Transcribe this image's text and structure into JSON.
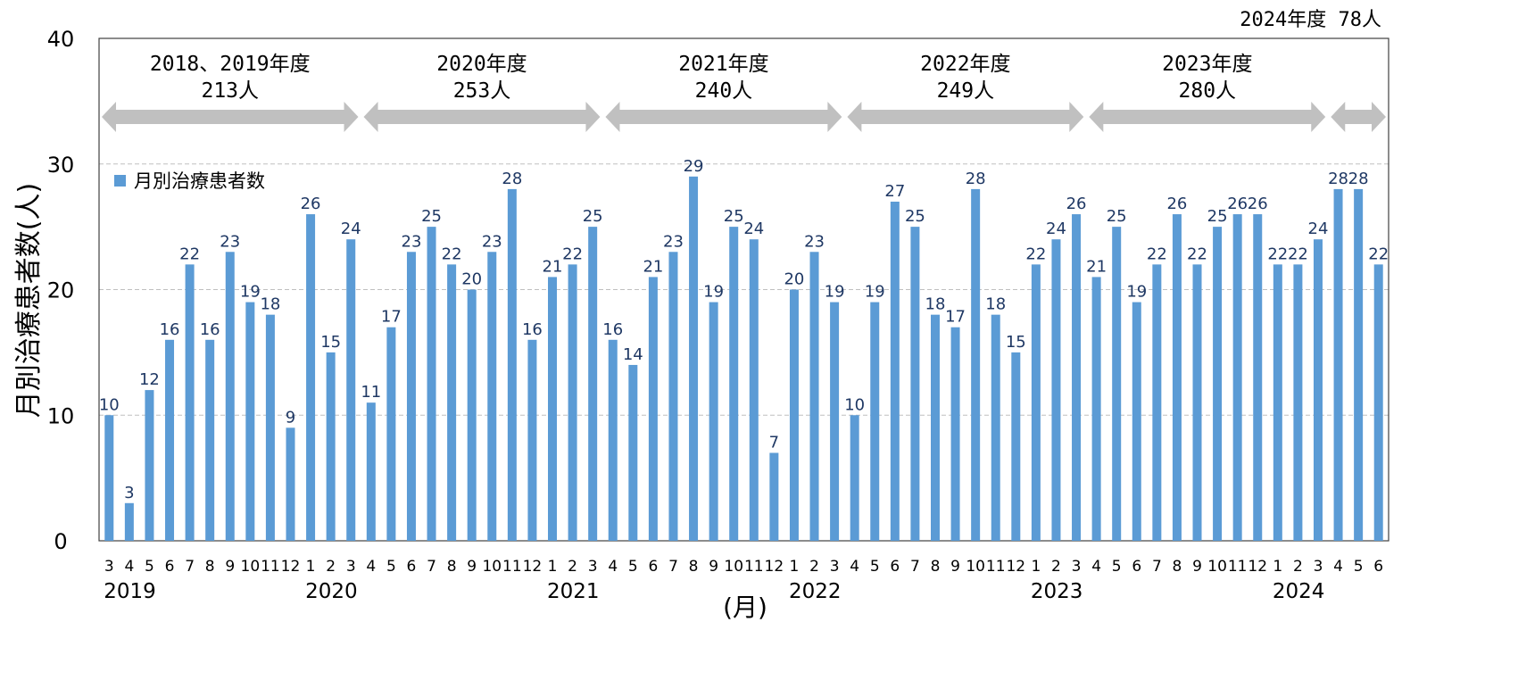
{
  "chart_data": {
    "type": "bar",
    "ylabel": "月別治療患者数(人)",
    "xlabel": "(月)",
    "ylim": [
      0,
      40
    ],
    "yticks": [
      "0",
      "10",
      "20",
      "30",
      "40"
    ],
    "grid": true,
    "legend_position": "top-left",
    "colors": {
      "bar": "#5B9BD5",
      "value_label": "#1F3864",
      "arrow": "#C0C0C0",
      "grid": "#BFBFBF"
    },
    "series": [
      {
        "name": "月別治療患者数",
        "values": [
          10,
          3,
          12,
          16,
          22,
          16,
          23,
          19,
          18,
          9,
          26,
          15,
          24,
          11,
          17,
          23,
          25,
          22,
          20,
          23,
          28,
          16,
          21,
          22,
          25,
          16,
          14,
          21,
          23,
          29,
          19,
          25,
          24,
          7,
          20,
          23,
          19,
          10,
          19,
          27,
          25,
          18,
          17,
          28,
          18,
          15,
          22,
          24,
          26,
          21,
          25,
          19,
          22,
          26,
          22,
          25,
          26,
          26,
          22,
          22,
          24,
          28,
          28,
          22
        ]
      }
    ],
    "categories": [
      "3",
      "4",
      "5",
      "6",
      "7",
      "8",
      "9",
      "10",
      "11",
      "12",
      "1",
      "2",
      "3",
      "4",
      "5",
      "6",
      "7",
      "8",
      "9",
      "10",
      "11",
      "12",
      "1",
      "2",
      "3",
      "4",
      "5",
      "6",
      "7",
      "8",
      "9",
      "10",
      "11",
      "12",
      "1",
      "2",
      "3",
      "4",
      "5",
      "6",
      "7",
      "8",
      "9",
      "10",
      "11",
      "12",
      "1",
      "2",
      "3",
      "4",
      "5",
      "6",
      "7",
      "8",
      "9",
      "10",
      "11",
      "12",
      "1",
      "2",
      "3",
      "4",
      "5",
      "6"
    ],
    "years": [
      {
        "label": "2019",
        "at": 0
      },
      {
        "label": "2020",
        "at": 10
      },
      {
        "label": "2021",
        "at": 22
      },
      {
        "label": "2022",
        "at": 34
      },
      {
        "label": "2023",
        "at": 46
      },
      {
        "label": "2024",
        "at": 58
      }
    ],
    "fiscal_periods": [
      {
        "line1": "2018、2019年度",
        "line2": "213人",
        "from": 0,
        "to": 12
      },
      {
        "line1": "2020年度",
        "line2": "253人",
        "from": 13,
        "to": 24
      },
      {
        "line1": "2021年度",
        "line2": "240人",
        "from": 25,
        "to": 36
      },
      {
        "line1": "2022年度",
        "line2": "249人",
        "from": 37,
        "to": 48
      },
      {
        "line1": "2023年度",
        "line2": "280人",
        "from": 49,
        "to": 60
      },
      {
        "line1": "",
        "line2": "",
        "from": 61,
        "to": 63
      }
    ],
    "annotation_top_right": "2024年度 78人"
  }
}
